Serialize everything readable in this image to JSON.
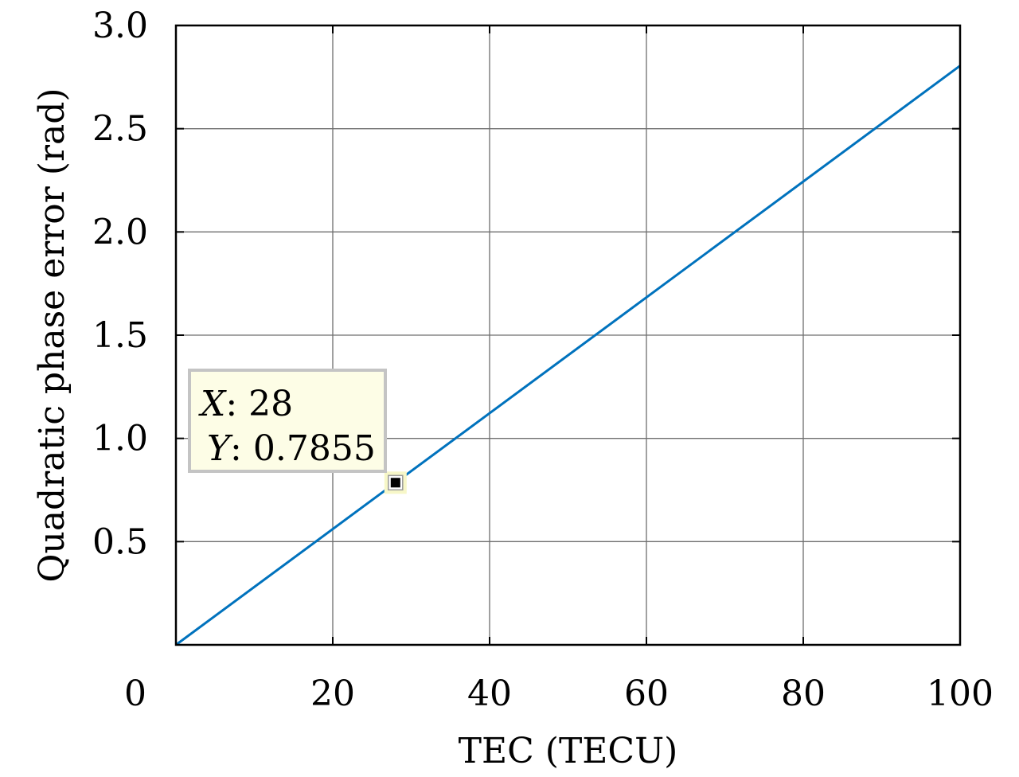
{
  "chart_data": {
    "type": "line",
    "xlabel": "TEC (TECU)",
    "ylabel": "Quadratic phase error (rad)",
    "xlim": [
      0,
      100
    ],
    "ylim": [
      0,
      3.0
    ],
    "x_ticks": [
      0,
      20,
      40,
      60,
      80,
      100
    ],
    "x_tick_labels": [
      "0",
      "20",
      "40",
      "60",
      "80",
      "100"
    ],
    "y_ticks": [
      0.5,
      1.0,
      1.5,
      2.0,
      2.5,
      3.0
    ],
    "y_tick_labels": [
      "0.5",
      "1.0",
      "1.5",
      "2.0",
      "2.5",
      "3.0"
    ],
    "grid": true,
    "series": [
      {
        "x": [
          0,
          100
        ],
        "y": [
          0,
          2.805
        ],
        "color": "#0072BD"
      }
    ],
    "datatip": {
      "x": 28,
      "y": 0.7855,
      "x_var": "X",
      "y_var": "Y",
      "x_text": ": 28",
      "y_text": ": 0.7855"
    }
  }
}
